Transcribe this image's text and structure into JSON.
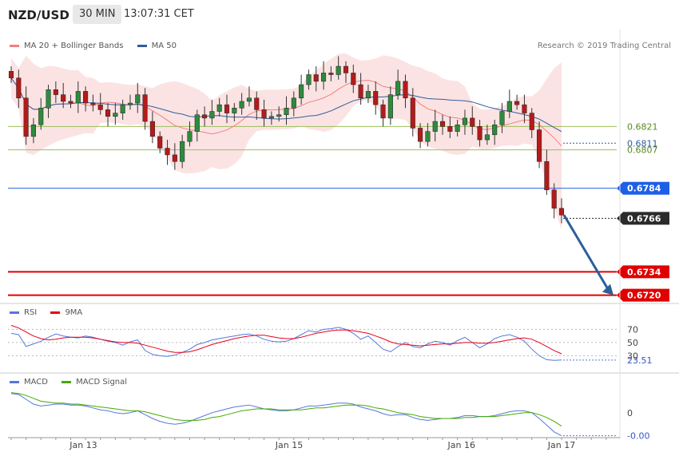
{
  "header": {
    "symbol": "NZD/USD",
    "timeframe": "30 MIN",
    "time": "13:07:31 CET"
  },
  "copyright": "Research © 2019 Trading Central",
  "legends": {
    "price": [
      {
        "name": "MA 20 + Bollinger Bands",
        "color": "#f08080"
      },
      {
        "name": "MA 50",
        "color": "#2f5f9a"
      }
    ],
    "rsi": [
      {
        "name": "RSI",
        "color": "#5577dd"
      },
      {
        "name": "9MA",
        "color": "#e8001c"
      }
    ],
    "macd": [
      {
        "name": "MACD",
        "color": "#5577dd"
      },
      {
        "name": "MACD Signal",
        "color": "#44aa00"
      }
    ]
  },
  "chart_data": {
    "type": "candlestick",
    "price_levels": [
      {
        "label": "0.6821",
        "value": 0.6821,
        "kind": "support_resistance",
        "color": "#9bbf5a"
      },
      {
        "label": "0.6811",
        "value": 0.6811,
        "kind": "ma50_value",
        "color": "#2f5f9a"
      },
      {
        "label": "0.6807",
        "value": 0.6807,
        "kind": "support_resistance",
        "color": "#9bbf5a"
      },
      {
        "label": "0.6784",
        "value": 0.6784,
        "kind": "pivot",
        "color": "#1f5fe6"
      },
      {
        "label": "0.6766",
        "value": 0.6766,
        "kind": "last_price",
        "color": "#2b2b2b"
      },
      {
        "label": "0.6734",
        "value": 0.6734,
        "kind": "target",
        "color": "#e00000"
      },
      {
        "label": "0.6720",
        "value": 0.672,
        "kind": "target",
        "color": "#e00000"
      }
    ],
    "price_range": [
      0.6716,
      0.6868
    ],
    "ohlc_close_path": [
      0.685,
      0.6838,
      0.6815,
      0.6822,
      0.6832,
      0.6843,
      0.684,
      0.6836,
      0.6835,
      0.6842,
      0.6835,
      0.6834,
      0.6831,
      0.6827,
      0.6829,
      0.6834,
      0.6835,
      0.684,
      0.6824,
      0.6815,
      0.6808,
      0.6804,
      0.68,
      0.6812,
      0.6818,
      0.6828,
      0.6826,
      0.683,
      0.6834,
      0.6829,
      0.6832,
      0.6836,
      0.6838,
      0.6831,
      0.6826,
      0.6827,
      0.6828,
      0.6832,
      0.6838,
      0.6846,
      0.6852,
      0.6848,
      0.6853,
      0.6852,
      0.6857,
      0.6853,
      0.6846,
      0.6838,
      0.6842,
      0.6834,
      0.6826,
      0.684,
      0.6848,
      0.6838,
      0.682,
      0.6812,
      0.6818,
      0.6824,
      0.6821,
      0.6818,
      0.6822,
      0.6826,
      0.6821,
      0.6813,
      0.6816,
      0.6822,
      0.683,
      0.6836,
      0.6834,
      0.6829,
      0.6819,
      0.68,
      0.6783,
      0.6772,
      0.6768
    ],
    "projection": {
      "from": 0.6768,
      "to": 0.672
    },
    "rsi": {
      "ticks": [
        "70",
        "50",
        "30"
      ],
      "range": [
        10,
        85
      ],
      "last_value": "23.51",
      "rsi": [
        64,
        62,
        44,
        48,
        52,
        58,
        63,
        60,
        58,
        57,
        60,
        58,
        55,
        52,
        50,
        46,
        51,
        54,
        38,
        32,
        30,
        29,
        31,
        35,
        40,
        47,
        50,
        54,
        56,
        58,
        60,
        62,
        63,
        60,
        55,
        52,
        51,
        52,
        56,
        62,
        68,
        66,
        70,
        71,
        73,
        70,
        64,
        55,
        60,
        50,
        40,
        36,
        44,
        50,
        44,
        42,
        48,
        52,
        50,
        46,
        53,
        58,
        50,
        42,
        48,
        56,
        60,
        62,
        58,
        52,
        40,
        30,
        24,
        23,
        23.51
      ],
      "ma9": [
        76,
        72,
        66,
        60,
        56,
        54,
        55,
        57,
        58,
        58,
        58,
        57,
        55,
        53,
        51,
        50,
        50,
        49,
        46,
        43,
        40,
        37,
        35,
        35,
        36,
        39,
        43,
        47,
        50,
        53,
        56,
        58,
        60,
        61,
        61,
        59,
        57,
        56,
        56,
        58,
        61,
        64,
        66,
        68,
        69,
        69,
        68,
        66,
        64,
        60,
        56,
        51,
        48,
        47,
        46,
        45,
        46,
        47,
        48,
        48,
        49,
        50,
        50,
        49,
        49,
        50,
        52,
        54,
        56,
        57,
        55,
        50,
        44,
        38,
        33
      ]
    },
    "macd": {
      "tick_zero": "0",
      "last_value": "-0.00",
      "range": [
        -0.0026,
        0.0024
      ],
      "macd": [
        0.002,
        0.0019,
        0.0014,
        0.0009,
        0.0007,
        0.0008,
        0.0009,
        0.0009,
        0.0008,
        0.0008,
        0.0007,
        0.0005,
        0.0003,
        0.0002,
        0.0,
        -0.0001,
        0.0,
        0.0002,
        -0.0002,
        -0.0006,
        -0.0009,
        -0.0011,
        -0.0012,
        -0.0011,
        -0.0009,
        -0.0006,
        -0.0003,
        0.0,
        0.0002,
        0.0004,
        0.0006,
        0.0007,
        0.0008,
        0.0006,
        0.0004,
        0.0003,
        0.0002,
        0.0002,
        0.0003,
        0.0005,
        0.0007,
        0.0007,
        0.0008,
        0.0009,
        0.001,
        0.001,
        0.0009,
        0.0006,
        0.0004,
        0.0002,
        -0.0001,
        -0.0003,
        -0.0002,
        -0.0002,
        -0.0005,
        -0.0007,
        -0.0008,
        -0.0007,
        -0.0006,
        -0.0006,
        -0.0005,
        -0.0003,
        -0.0003,
        -0.0004,
        -0.0004,
        -0.0003,
        -0.0001,
        0.0001,
        0.0002,
        0.0002,
        0.0,
        -0.0006,
        -0.0013,
        -0.002,
        -0.0024
      ],
      "signal": [
        0.0021,
        0.002,
        0.0018,
        0.0015,
        0.0012,
        0.0011,
        0.001,
        0.001,
        0.0009,
        0.0009,
        0.0008,
        0.0007,
        0.0006,
        0.0005,
        0.0004,
        0.0003,
        0.0002,
        0.0002,
        0.0001,
        -0.0001,
        -0.0003,
        -0.0005,
        -0.0007,
        -0.0008,
        -0.0008,
        -0.0008,
        -0.0007,
        -0.0005,
        -0.0004,
        -0.0002,
        0.0,
        0.0002,
        0.0003,
        0.0004,
        0.0004,
        0.0004,
        0.0003,
        0.0003,
        0.0003,
        0.0003,
        0.0004,
        0.0005,
        0.0005,
        0.0006,
        0.0007,
        0.0008,
        0.0008,
        0.0008,
        0.0007,
        0.0005,
        0.0004,
        0.0002,
        0.0,
        -0.0001,
        -0.0002,
        -0.0004,
        -0.0005,
        -0.0006,
        -0.0006,
        -0.0006,
        -0.0006,
        -0.0005,
        -0.0005,
        -0.0004,
        -0.0004,
        -0.0004,
        -0.0003,
        -0.0002,
        -0.0001,
        0.0,
        0.0,
        -0.0002,
        -0.0005,
        -0.0009,
        -0.0014
      ]
    },
    "x_labels": [
      {
        "label": "Jan 13",
        "index": 13
      },
      {
        "label": "Jan 15",
        "index": 50
      },
      {
        "label": "Jan 16",
        "index": 81
      },
      {
        "label": "Jan 17",
        "index": 99
      }
    ]
  }
}
